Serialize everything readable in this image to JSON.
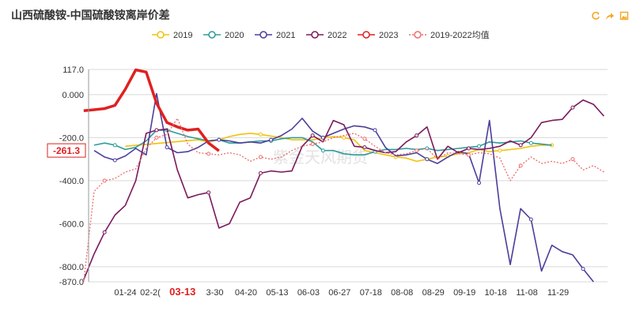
{
  "title": "山西硫酸铵-中国硫酸铵离岸价差",
  "toolbar": {
    "icons": [
      "refresh-icon",
      "share-icon",
      "save-image-icon"
    ],
    "accent": "#f5a623"
  },
  "watermark": "紫金天风期货",
  "chart_data": {
    "type": "line",
    "title": "山西硫酸铵-中国硫酸铵离岸价差",
    "ylim": [
      -870,
      117
    ],
    "y_ticks": [
      117,
      0,
      -200,
      -400,
      -600,
      -800,
      -870
    ],
    "y_tick_labels": [
      "117.0",
      "0.000",
      "-200.0",
      "-400.0",
      "-600.0",
      "-800.0",
      "-870.0"
    ],
    "x_tick_labels": [
      "01-24",
      "02-2(",
      "03-13",
      "3-30",
      "04-20",
      "05-13",
      "06-03",
      "06-27",
      "07-18",
      "08-08",
      "08-29",
      "09-19",
      "10-18",
      "11-08",
      "11-29"
    ],
    "highlight_x_label": "03-13",
    "last_value_label": "-261.3",
    "legend": [
      "2019",
      "2020",
      "2021",
      "2022",
      "2023",
      "2019-2022均值"
    ],
    "legend_position": "top",
    "grid": true,
    "series": [
      {
        "name": "2019",
        "color": "#f2c20d",
        "dashed": false,
        "values": [
          [
            3,
            -240
          ],
          [
            10,
            -210
          ],
          [
            11,
            -220
          ],
          [
            12,
            -210
          ],
          [
            13,
            -195
          ],
          [
            14,
            -185
          ],
          [
            15,
            -180
          ],
          [
            16,
            -185
          ],
          [
            18,
            -200
          ],
          [
            19,
            -210
          ],
          [
            21,
            -210
          ],
          [
            23,
            -195
          ],
          [
            24,
            -200
          ],
          [
            25,
            -210
          ],
          [
            26,
            -260
          ],
          [
            27,
            -270
          ],
          [
            28,
            -280
          ],
          [
            29,
            -290
          ],
          [
            30,
            -295
          ],
          [
            31,
            -310
          ],
          [
            32,
            -300
          ],
          [
            33,
            -290
          ],
          [
            34,
            -285
          ],
          [
            35,
            -275
          ],
          [
            36,
            -270
          ],
          [
            37,
            -255
          ],
          [
            38,
            -265
          ],
          [
            39,
            -260
          ],
          [
            40,
            -255
          ],
          [
            41,
            -250
          ],
          [
            42,
            -240
          ],
          [
            43,
            -235
          ],
          [
            44,
            -235
          ]
        ]
      },
      {
        "name": "2020",
        "color": "#2e9b9b",
        "dashed": false,
        "values": [
          [
            0,
            -235
          ],
          [
            1,
            -225
          ],
          [
            2,
            -235
          ],
          [
            3,
            -255
          ],
          [
            4,
            -245
          ],
          [
            5,
            -215
          ],
          [
            6,
            -165
          ],
          [
            7,
            -165
          ],
          [
            8,
            -180
          ],
          [
            9,
            -195
          ],
          [
            10,
            -205
          ],
          [
            11,
            -215
          ],
          [
            12,
            -210
          ],
          [
            13,
            -225
          ],
          [
            14,
            -225
          ],
          [
            15,
            -220
          ],
          [
            16,
            -215
          ],
          [
            17,
            -215
          ],
          [
            18,
            -205
          ],
          [
            19,
            -200
          ],
          [
            20,
            -200
          ],
          [
            21,
            -220
          ],
          [
            22,
            -260
          ],
          [
            23,
            -260
          ],
          [
            24,
            -275
          ],
          [
            25,
            -280
          ],
          [
            26,
            -280
          ],
          [
            27,
            -265
          ],
          [
            28,
            -255
          ],
          [
            29,
            -255
          ],
          [
            30,
            -250
          ],
          [
            31,
            -255
          ],
          [
            32,
            -250
          ],
          [
            33,
            -260
          ],
          [
            34,
            -255
          ],
          [
            35,
            -250
          ],
          [
            36,
            -245
          ],
          [
            37,
            -240
          ],
          [
            38,
            -220
          ],
          [
            39,
            -225
          ],
          [
            40,
            -220
          ],
          [
            41,
            -215
          ],
          [
            42,
            -225
          ],
          [
            43,
            -230
          ],
          [
            44,
            -235
          ]
        ]
      },
      {
        "name": "2021",
        "color": "#4b3f9b",
        "dashed": false,
        "values": [
          [
            0,
            -260
          ],
          [
            1,
            -290
          ],
          [
            2,
            -305
          ],
          [
            3,
            -285
          ],
          [
            4,
            -250
          ],
          [
            5,
            -280
          ],
          [
            6,
            5
          ],
          [
            7,
            -245
          ],
          [
            8,
            -270
          ],
          [
            9,
            -265
          ],
          [
            10,
            -245
          ],
          [
            11,
            -215
          ],
          [
            12,
            -210
          ],
          [
            13,
            -215
          ],
          [
            14,
            -225
          ],
          [
            15,
            -220
          ],
          [
            16,
            -225
          ],
          [
            17,
            -210
          ],
          [
            18,
            -190
          ],
          [
            19,
            -160
          ],
          [
            20,
            -110
          ],
          [
            21,
            -170
          ],
          [
            22,
            -200
          ],
          [
            23,
            -180
          ],
          [
            24,
            -160
          ],
          [
            25,
            -145
          ],
          [
            26,
            -150
          ],
          [
            27,
            -165
          ],
          [
            28,
            -245
          ],
          [
            29,
            -285
          ],
          [
            30,
            -280
          ],
          [
            31,
            -270
          ],
          [
            32,
            -300
          ],
          [
            33,
            -320
          ],
          [
            34,
            -290
          ],
          [
            35,
            -265
          ],
          [
            36,
            -275
          ],
          [
            37,
            -410
          ],
          [
            38,
            -120
          ],
          [
            39,
            -530
          ],
          [
            40,
            -790
          ],
          [
            41,
            -530
          ],
          [
            42,
            -580
          ],
          [
            43,
            -820
          ],
          [
            44,
            -700
          ],
          [
            45,
            -730
          ],
          [
            46,
            -745
          ],
          [
            47,
            -810
          ],
          [
            48,
            -870
          ]
        ]
      },
      {
        "name": "2022",
        "color": "#7b1a5c",
        "dashed": false,
        "values": [
          [
            -1,
            -860
          ],
          [
            0,
            -740
          ],
          [
            1,
            -640
          ],
          [
            2,
            -560
          ],
          [
            3,
            -515
          ],
          [
            4,
            -400
          ],
          [
            5,
            -180
          ],
          [
            6,
            -165
          ],
          [
            7,
            -160
          ],
          [
            8,
            -350
          ],
          [
            9,
            -480
          ],
          [
            10,
            -465
          ],
          [
            11,
            -455
          ],
          [
            12,
            -620
          ],
          [
            13,
            -600
          ],
          [
            14,
            -500
          ],
          [
            15,
            -480
          ],
          [
            16,
            -365
          ],
          [
            17,
            -355
          ],
          [
            18,
            -360
          ],
          [
            19,
            -355
          ],
          [
            20,
            -240
          ],
          [
            21,
            -190
          ],
          [
            22,
            -220
          ],
          [
            23,
            -120
          ],
          [
            24,
            -140
          ],
          [
            25,
            -240
          ],
          [
            26,
            -245
          ],
          [
            27,
            -260
          ],
          [
            28,
            -270
          ],
          [
            29,
            -265
          ],
          [
            30,
            -220
          ],
          [
            31,
            -190
          ],
          [
            32,
            -150
          ],
          [
            33,
            -300
          ],
          [
            34,
            -240
          ],
          [
            35,
            -270
          ],
          [
            36,
            -250
          ],
          [
            37,
            -255
          ],
          [
            38,
            -250
          ],
          [
            39,
            -240
          ],
          [
            40,
            -215
          ],
          [
            41,
            -235
          ],
          [
            42,
            -200
          ],
          [
            43,
            -130
          ],
          [
            44,
            -120
          ],
          [
            45,
            -115
          ],
          [
            46,
            -60
          ],
          [
            47,
            -25
          ],
          [
            48,
            -45
          ],
          [
            49,
            -100
          ]
        ]
      },
      {
        "name": "2023",
        "color": "#e02020",
        "dashed": false,
        "values": [
          [
            -1,
            -75
          ],
          [
            0,
            -70
          ],
          [
            1,
            -65
          ],
          [
            2,
            -50
          ],
          [
            3,
            25
          ],
          [
            4,
            115
          ],
          [
            5,
            105
          ],
          [
            6,
            -40
          ],
          [
            7,
            -130
          ],
          [
            8,
            -150
          ],
          [
            9,
            -165
          ],
          [
            10,
            -160
          ],
          [
            11,
            -225
          ],
          [
            12,
            -261.3
          ]
        ]
      },
      {
        "name": "2019-2022均值",
        "color": "#ef6b6b",
        "dashed": true,
        "values": [
          [
            -1,
            -870
          ],
          [
            0,
            -450
          ],
          [
            1,
            -400
          ],
          [
            2,
            -390
          ],
          [
            3,
            -360
          ],
          [
            4,
            -345
          ],
          [
            5,
            -250
          ],
          [
            6,
            -200
          ],
          [
            7,
            -185
          ],
          [
            8,
            -110
          ],
          [
            9,
            -230
          ],
          [
            10,
            -270
          ],
          [
            11,
            -275
          ],
          [
            12,
            -280
          ],
          [
            13,
            -270
          ],
          [
            14,
            -280
          ],
          [
            15,
            -310
          ],
          [
            16,
            -290
          ],
          [
            17,
            -300
          ],
          [
            18,
            -290
          ],
          [
            19,
            -260
          ],
          [
            20,
            -240
          ],
          [
            21,
            -230
          ],
          [
            22,
            -220
          ],
          [
            23,
            -200
          ],
          [
            24,
            -190
          ],
          [
            25,
            -180
          ],
          [
            26,
            -205
          ],
          [
            27,
            -240
          ],
          [
            28,
            -270
          ],
          [
            29,
            -280
          ],
          [
            30,
            -275
          ],
          [
            31,
            -260
          ],
          [
            32,
            -250
          ],
          [
            33,
            -300
          ],
          [
            34,
            -270
          ],
          [
            35,
            -275
          ],
          [
            36,
            -280
          ],
          [
            37,
            -270
          ],
          [
            38,
            -275
          ],
          [
            39,
            -295
          ],
          [
            40,
            -400
          ],
          [
            41,
            -330
          ],
          [
            42,
            -290
          ],
          [
            43,
            -320
          ],
          [
            44,
            -310
          ],
          [
            45,
            -320
          ],
          [
            46,
            -300
          ],
          [
            47,
            -350
          ],
          [
            48,
            -330
          ],
          [
            49,
            -360
          ]
        ]
      }
    ]
  }
}
